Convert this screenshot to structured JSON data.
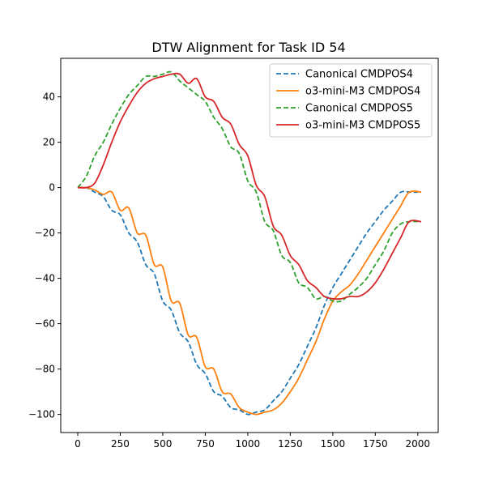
{
  "chart_data": {
    "type": "line",
    "title": "DTW Alignment for Task ID 54",
    "xlabel": "",
    "ylabel": "",
    "xlim": [
      -100,
      2120
    ],
    "ylim": [
      -108,
      57
    ],
    "xticks": [
      0,
      250,
      500,
      750,
      1000,
      1250,
      1500,
      1750,
      2000
    ],
    "yticks": [
      -100,
      -80,
      -60,
      -40,
      -20,
      0,
      20,
      40
    ],
    "grid": false,
    "legend_position": "top-right",
    "series": [
      {
        "name": "Canonical CMDPOS4",
        "color": "#1f77b4",
        "style": "dashed",
        "points": [
          [
            0,
            0
          ],
          [
            50,
            0
          ],
          [
            100,
            -2
          ],
          [
            150,
            -4
          ],
          [
            200,
            -10
          ],
          [
            250,
            -12
          ],
          [
            300,
            -20
          ],
          [
            350,
            -24
          ],
          [
            400,
            -34
          ],
          [
            450,
            -38
          ],
          [
            500,
            -50
          ],
          [
            550,
            -54
          ],
          [
            600,
            -64
          ],
          [
            650,
            -68
          ],
          [
            700,
            -78
          ],
          [
            750,
            -82
          ],
          [
            800,
            -90
          ],
          [
            850,
            -92
          ],
          [
            900,
            -97
          ],
          [
            950,
            -98
          ],
          [
            1000,
            -100
          ],
          [
            1050,
            -99
          ],
          [
            1100,
            -98
          ],
          [
            1150,
            -94
          ],
          [
            1200,
            -90
          ],
          [
            1250,
            -84
          ],
          [
            1300,
            -78
          ],
          [
            1350,
            -70
          ],
          [
            1400,
            -62
          ],
          [
            1450,
            -52
          ],
          [
            1500,
            -44
          ],
          [
            1550,
            -38
          ],
          [
            1600,
            -32
          ],
          [
            1650,
            -26
          ],
          [
            1700,
            -20
          ],
          [
            1750,
            -15
          ],
          [
            1800,
            -10
          ],
          [
            1850,
            -6
          ],
          [
            1900,
            -2
          ],
          [
            1950,
            -2
          ],
          [
            2000,
            -2
          ]
        ]
      },
      {
        "name": "o3-mini-M3 CMDPOS4",
        "color": "#ff7f0e",
        "style": "solid",
        "points": [
          [
            0,
            0
          ],
          [
            50,
            0
          ],
          [
            100,
            -1
          ],
          [
            150,
            -3
          ],
          [
            200,
            -2
          ],
          [
            250,
            -10
          ],
          [
            300,
            -9
          ],
          [
            350,
            -20
          ],
          [
            400,
            -21
          ],
          [
            450,
            -34
          ],
          [
            500,
            -35
          ],
          [
            550,
            -50
          ],
          [
            600,
            -51
          ],
          [
            650,
            -65
          ],
          [
            700,
            -66
          ],
          [
            750,
            -79
          ],
          [
            800,
            -80
          ],
          [
            850,
            -90
          ],
          [
            900,
            -91
          ],
          [
            950,
            -97
          ],
          [
            1000,
            -99
          ],
          [
            1050,
            -100
          ],
          [
            1100,
            -99
          ],
          [
            1150,
            -98
          ],
          [
            1200,
            -95
          ],
          [
            1250,
            -90
          ],
          [
            1300,
            -84
          ],
          [
            1350,
            -76
          ],
          [
            1400,
            -68
          ],
          [
            1450,
            -58
          ],
          [
            1500,
            -50
          ],
          [
            1550,
            -46
          ],
          [
            1600,
            -43
          ],
          [
            1650,
            -38
          ],
          [
            1700,
            -32
          ],
          [
            1750,
            -26
          ],
          [
            1800,
            -20
          ],
          [
            1850,
            -14
          ],
          [
            1900,
            -8
          ],
          [
            1950,
            -2
          ],
          [
            2020,
            -2
          ]
        ]
      },
      {
        "name": "Canonical CMDPOS5",
        "color": "#2ca02c",
        "style": "dashed",
        "points": [
          [
            0,
            0
          ],
          [
            50,
            5
          ],
          [
            100,
            14
          ],
          [
            150,
            20
          ],
          [
            200,
            28
          ],
          [
            250,
            35
          ],
          [
            300,
            41
          ],
          [
            350,
            45
          ],
          [
            400,
            49
          ],
          [
            450,
            49
          ],
          [
            500,
            50
          ],
          [
            550,
            51
          ],
          [
            600,
            47
          ],
          [
            650,
            44
          ],
          [
            700,
            41
          ],
          [
            750,
            38
          ],
          [
            800,
            31
          ],
          [
            850,
            26
          ],
          [
            900,
            18
          ],
          [
            950,
            15
          ],
          [
            1000,
            3
          ],
          [
            1050,
            -2
          ],
          [
            1100,
            -15
          ],
          [
            1150,
            -19
          ],
          [
            1200,
            -30
          ],
          [
            1250,
            -33
          ],
          [
            1300,
            -42
          ],
          [
            1350,
            -44
          ],
          [
            1400,
            -49
          ],
          [
            1450,
            -48
          ],
          [
            1500,
            -50
          ],
          [
            1550,
            -50
          ],
          [
            1600,
            -47
          ],
          [
            1650,
            -44
          ],
          [
            1700,
            -40
          ],
          [
            1750,
            -34
          ],
          [
            1800,
            -28
          ],
          [
            1850,
            -20
          ],
          [
            1900,
            -16
          ],
          [
            1950,
            -15
          ],
          [
            2000,
            -15
          ]
        ]
      },
      {
        "name": "o3-mini-M3 CMDPOS5",
        "color": "#d62728",
        "style": "solid",
        "points": [
          [
            0,
            0
          ],
          [
            50,
            0
          ],
          [
            100,
            2
          ],
          [
            150,
            10
          ],
          [
            200,
            20
          ],
          [
            250,
            29
          ],
          [
            300,
            36
          ],
          [
            350,
            42
          ],
          [
            400,
            46
          ],
          [
            450,
            48
          ],
          [
            500,
            49
          ],
          [
            550,
            50
          ],
          [
            600,
            50
          ],
          [
            650,
            46
          ],
          [
            700,
            48
          ],
          [
            750,
            40
          ],
          [
            800,
            38
          ],
          [
            850,
            31
          ],
          [
            900,
            28
          ],
          [
            950,
            19
          ],
          [
            1000,
            14
          ],
          [
            1050,
            1
          ],
          [
            1100,
            -4
          ],
          [
            1150,
            -17
          ],
          [
            1200,
            -21
          ],
          [
            1250,
            -30
          ],
          [
            1300,
            -34
          ],
          [
            1350,
            -41
          ],
          [
            1400,
            -44
          ],
          [
            1450,
            -48
          ],
          [
            1500,
            -49
          ],
          [
            1550,
            -49
          ],
          [
            1600,
            -48
          ],
          [
            1650,
            -48
          ],
          [
            1700,
            -46
          ],
          [
            1750,
            -42
          ],
          [
            1800,
            -36
          ],
          [
            1850,
            -29
          ],
          [
            1900,
            -22
          ],
          [
            1950,
            -15
          ],
          [
            2020,
            -15
          ]
        ]
      }
    ]
  }
}
